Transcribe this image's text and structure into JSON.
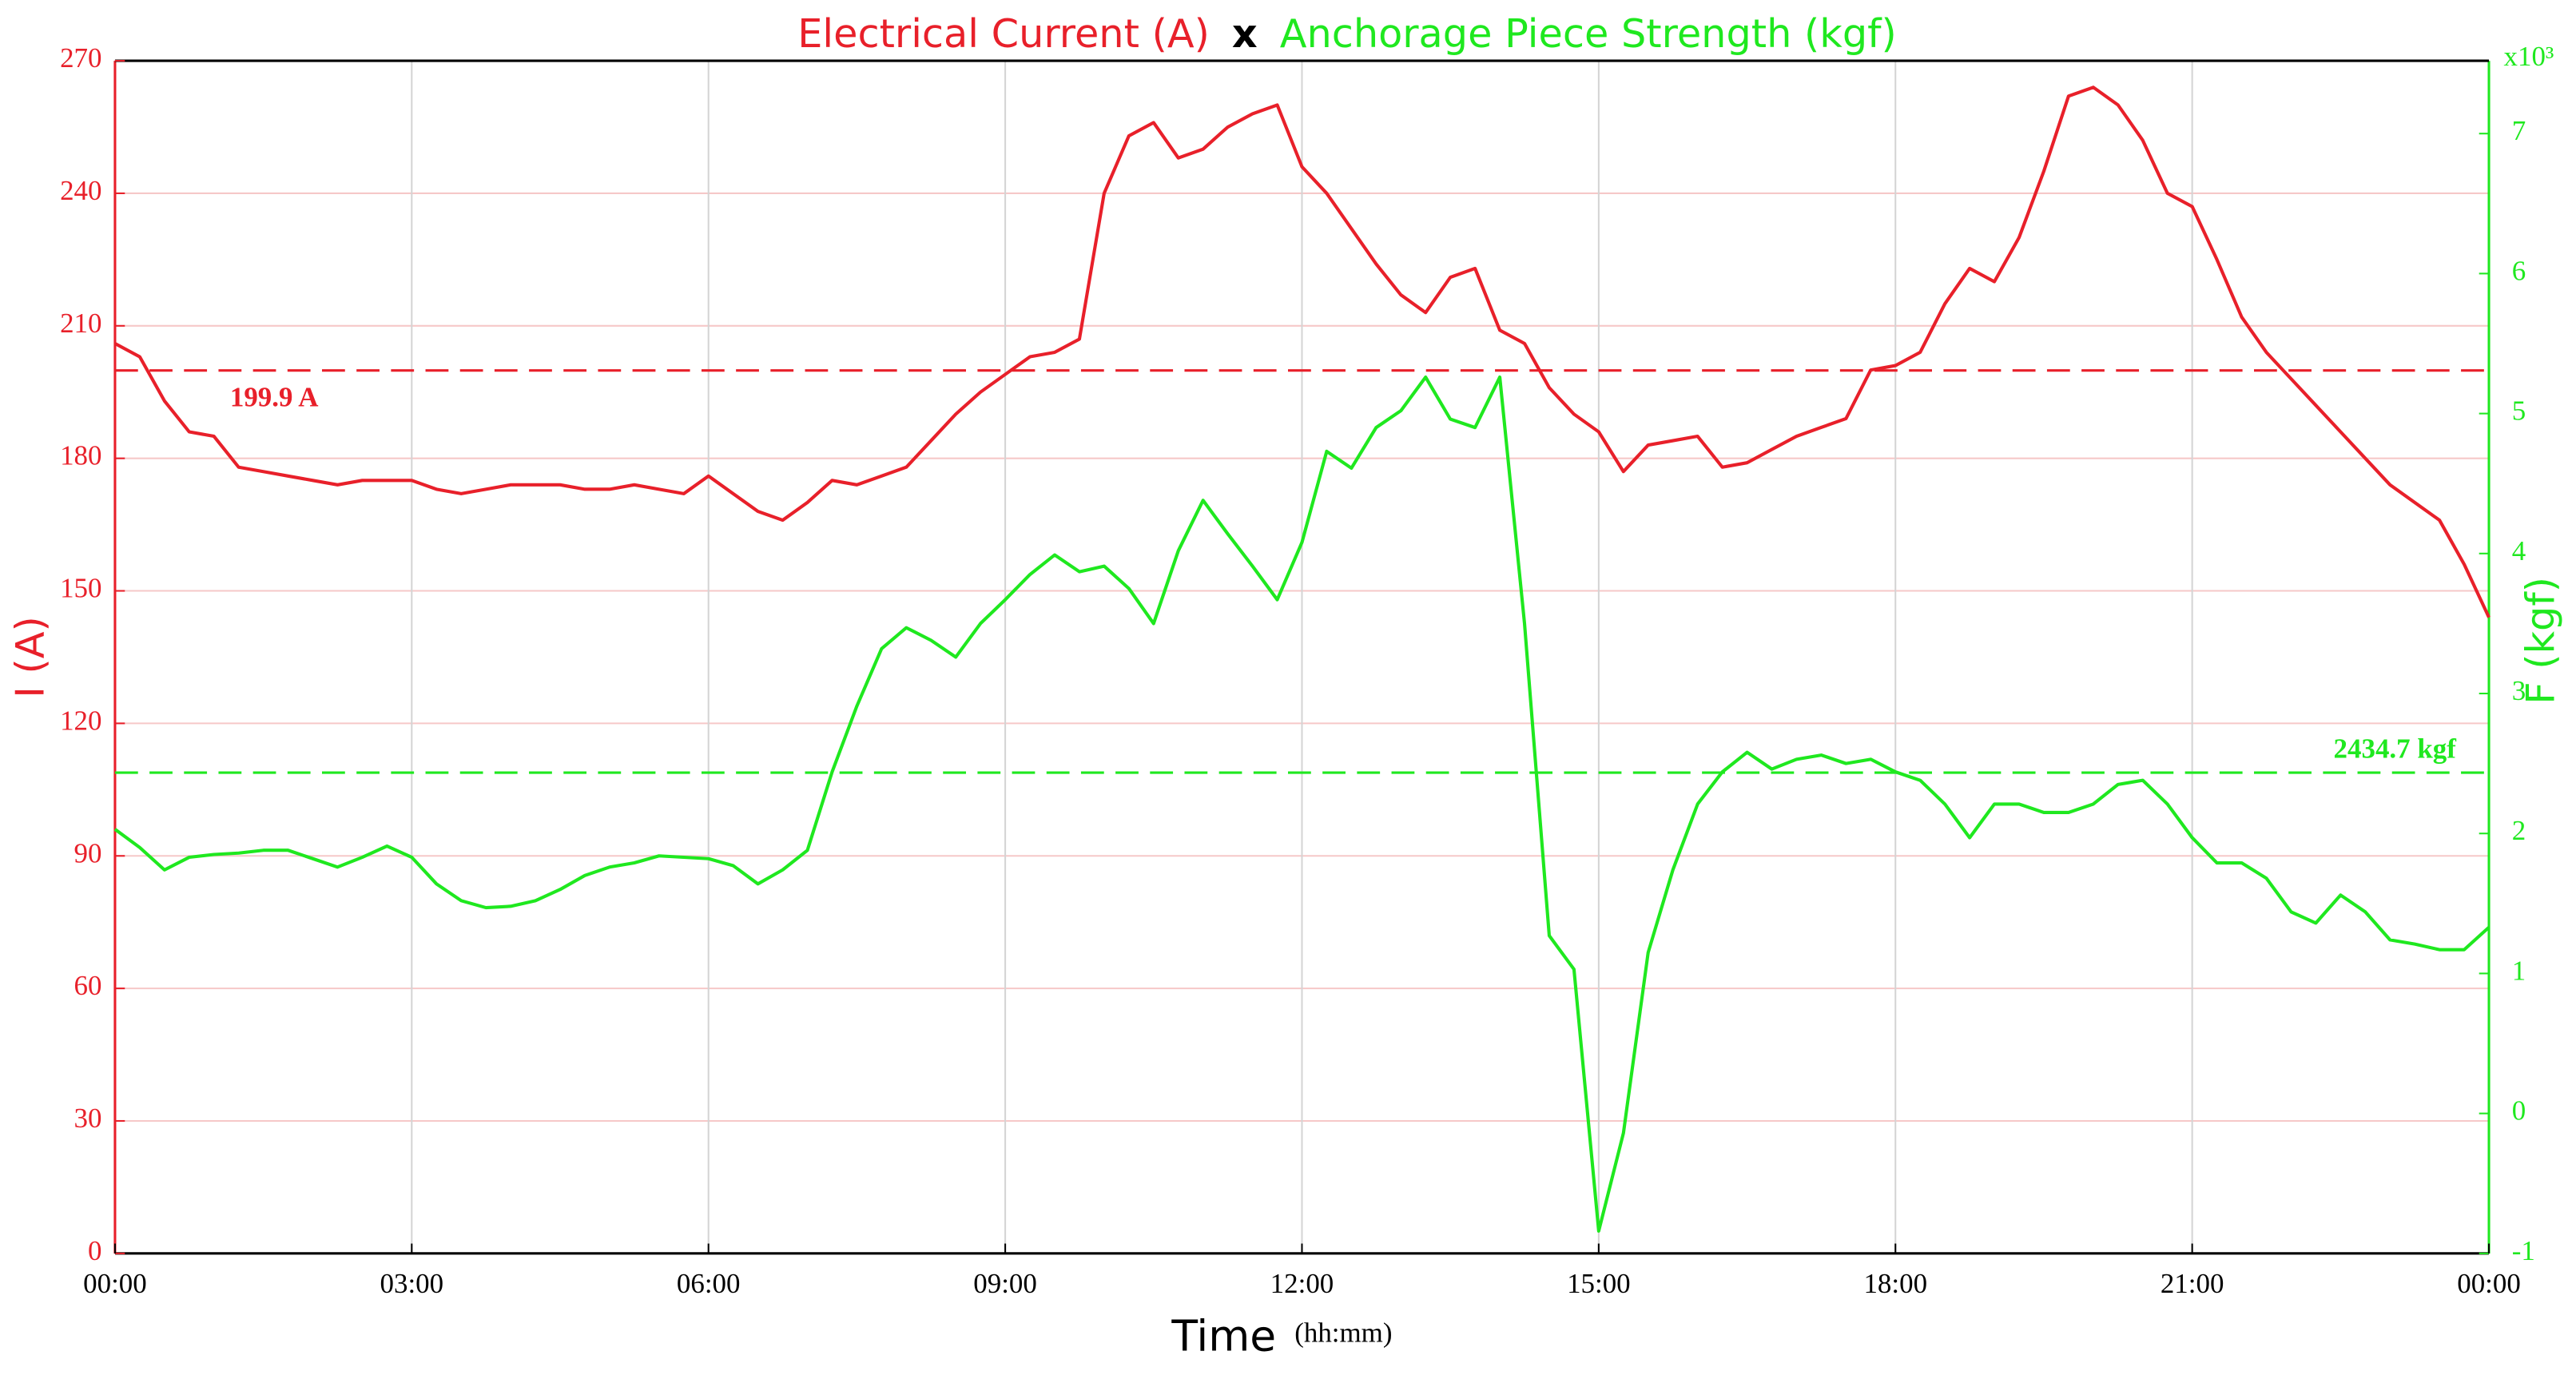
{
  "chart_data": {
    "type": "line",
    "title_parts": [
      "Electrical Current (A)",
      "x",
      "Anchorage Piece Strength (kgf)"
    ],
    "xlabel": "Time",
    "xlabel_unit": "(hh:mm)",
    "ylabel": "I (A)",
    "y2label": "F (kgf)",
    "y2_multiplier": "x10³",
    "grid": true,
    "xlim": [
      0,
      24
    ],
    "xticks": [
      {
        "value": 0,
        "label": "00:00"
      },
      {
        "value": 3,
        "label": "03:00"
      },
      {
        "value": 6,
        "label": "06:00"
      },
      {
        "value": 9,
        "label": "09:00"
      },
      {
        "value": 12,
        "label": "12:00"
      },
      {
        "value": 15,
        "label": "15:00"
      },
      {
        "value": 18,
        "label": "18:00"
      },
      {
        "value": 21,
        "label": "21:00"
      },
      {
        "value": 24,
        "label": "00:00"
      }
    ],
    "ylim": [
      0,
      270
    ],
    "yticks": [
      0,
      30,
      60,
      90,
      120,
      150,
      180,
      210,
      240,
      270
    ],
    "y2lim": [
      -1,
      7.52
    ],
    "y2ticks": [
      -1,
      0,
      1,
      2,
      3,
      4,
      5,
      6,
      7
    ],
    "x": [
      0,
      0.25,
      0.5,
      0.75,
      1,
      1.25,
      1.5,
      1.75,
      2,
      2.25,
      2.5,
      2.75,
      3,
      3.25,
      3.5,
      3.75,
      4,
      4.25,
      4.5,
      4.75,
      5,
      5.25,
      5.5,
      5.75,
      6,
      6.25,
      6.5,
      6.75,
      7,
      7.25,
      7.5,
      7.75,
      8,
      8.25,
      8.5,
      8.75,
      9,
      9.25,
      9.5,
      9.75,
      10,
      10.25,
      10.5,
      10.75,
      11,
      11.25,
      11.5,
      11.75,
      12,
      12.25,
      12.5,
      12.75,
      13,
      13.25,
      13.5,
      13.75,
      14,
      14.25,
      14.5,
      14.75,
      15,
      15.25,
      15.5,
      15.75,
      16,
      16.25,
      16.5,
      16.75,
      17,
      17.25,
      17.5,
      17.75,
      18,
      18.25,
      18.5,
      18.75,
      19,
      19.25,
      19.5,
      19.75,
      20,
      20.25,
      20.5,
      20.75,
      21,
      21.25,
      21.5,
      21.75,
      22,
      22.25,
      22.5,
      22.75,
      23,
      23.25,
      23.5,
      23.75,
      24
    ],
    "series": [
      {
        "name": "Electrical Current (A)",
        "color": "#e8202a",
        "axis": "y",
        "values": [
          206,
          203,
          193,
          186,
          185,
          178,
          177,
          176,
          175,
          174,
          175,
          175,
          175,
          173,
          172,
          173,
          174,
          174,
          174,
          173,
          173,
          174,
          173,
          172,
          176,
          172,
          168,
          166,
          170,
          175,
          174,
          176,
          178,
          184,
          190,
          195,
          199,
          203,
          204,
          207,
          240,
          253,
          256,
          248,
          250,
          255,
          258,
          260,
          246,
          240,
          232,
          224,
          217,
          213,
          221,
          223,
          209,
          206,
          196,
          190,
          186,
          177,
          183,
          184,
          185,
          178,
          179,
          182,
          185,
          187,
          189,
          200,
          201,
          204,
          215,
          223,
          220,
          230,
          245,
          262,
          264,
          260,
          252,
          240,
          237,
          225,
          212,
          204,
          198,
          192,
          186,
          180,
          174,
          170,
          166,
          156,
          144
        ]
      },
      {
        "name": "Anchorage Piece Strength (kgf)",
        "color": "#1fe81f",
        "axis": "y2",
        "values": [
          2.03,
          1.9,
          1.74,
          1.83,
          1.85,
          1.86,
          1.88,
          1.88,
          1.82,
          1.76,
          1.83,
          1.91,
          1.83,
          1.64,
          1.52,
          1.47,
          1.48,
          1.52,
          1.6,
          1.7,
          1.76,
          1.79,
          1.84,
          1.83,
          1.82,
          1.77,
          1.64,
          1.74,
          1.88,
          2.44,
          2.91,
          3.32,
          3.47,
          3.38,
          3.26,
          3.5,
          3.67,
          3.85,
          3.99,
          3.87,
          3.91,
          3.75,
          3.5,
          4.02,
          4.38,
          4.14,
          3.91,
          3.67,
          4.08,
          4.73,
          4.61,
          4.9,
          5.02,
          5.26,
          4.96,
          4.9,
          5.26,
          3.5,
          1.27,
          1.03,
          -0.84,
          -0.14,
          1.15,
          1.74,
          2.21,
          2.44,
          2.58,
          2.46,
          2.53,
          2.56,
          2.5,
          2.53,
          2.44,
          2.38,
          2.21,
          1.97,
          2.21,
          2.21,
          2.15,
          2.15,
          2.21,
          2.35,
          2.38,
          2.21,
          1.97,
          1.79,
          1.79,
          1.68,
          1.44,
          1.36,
          1.56,
          1.44,
          1.24,
          1.21,
          1.17,
          1.17,
          1.33
        ]
      }
    ],
    "reference_lines": [
      {
        "value": 199.9,
        "label": "199.9 A",
        "axis": "y",
        "color": "#e8202a"
      },
      {
        "value": 2.4347,
        "label": "2434.7 kgf",
        "axis": "y2",
        "color": "#1fe81f"
      }
    ]
  }
}
